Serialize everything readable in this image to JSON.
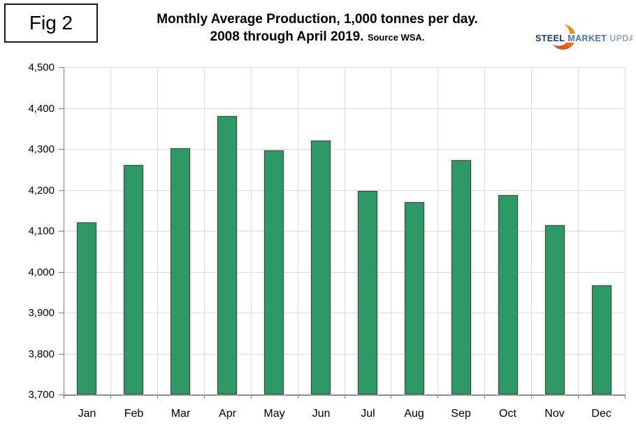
{
  "figure_label": "Fig 2",
  "title": {
    "line1": "Monthly Average Production, 1,000 tonnes per day.",
    "line2": "2008 through April 2019.",
    "source": "Source WSA."
  },
  "logo": {
    "steel": "STEEL",
    "market": "MARKET",
    "update": "UPDATE",
    "colors": {
      "steel": "#1b3a6b",
      "market": "#4a72b2",
      "update": "#94a7c9",
      "crescent_left": "#d93b27",
      "crescent_right": "#f7a21b"
    }
  },
  "chart_data": {
    "type": "bar",
    "title": "Monthly Average Production, 1,000 tonnes per day. 2008 through April 2019. Source WSA.",
    "categories": [
      "Jan",
      "Feb",
      "Mar",
      "Apr",
      "May",
      "Jun",
      "Jul",
      "Aug",
      "Sep",
      "Oct",
      "Nov",
      "Dec"
    ],
    "values": [
      4120,
      4260,
      4302,
      4380,
      4297,
      4320,
      4198,
      4170,
      4272,
      4188,
      4113,
      3966
    ],
    "xlabel": "",
    "ylabel": "",
    "ylim": [
      3700,
      4500
    ],
    "ytick_step": 100,
    "ytick_labels": [
      "3,700",
      "3,800",
      "3,900",
      "4,000",
      "4,100",
      "4,200",
      "4,300",
      "4,400",
      "4,500"
    ],
    "grid": true,
    "legend": "none",
    "bar_color": "#2e9966",
    "bar_border": "#404040",
    "gridline_color": "#dcdcdc",
    "axis_color": "#808080"
  }
}
